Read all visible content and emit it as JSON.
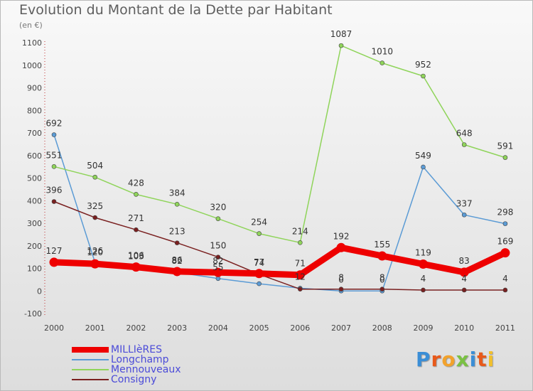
{
  "title": "Evolution du Montant de la Dette par Habitant",
  "unit_label": "(en €)",
  "brand": {
    "letters": [
      "P",
      "r",
      "o",
      "x",
      "i",
      "t",
      "i"
    ],
    "colors": [
      "#3b8ed6",
      "#e8591a",
      "#f2a22c",
      "#7ac143",
      "#3b8ed6",
      "#e8591a",
      "#f2c02c"
    ]
  },
  "chart_data": {
    "type": "line",
    "x": [
      "2000",
      "2001",
      "2002",
      "2003",
      "2004",
      "2005",
      "2006",
      "2007",
      "2008",
      "2009",
      "2010",
      "2011"
    ],
    "ylim": [
      -100,
      1100
    ],
    "yticks": [
      -100,
      0,
      100,
      200,
      300,
      400,
      500,
      600,
      700,
      800,
      900,
      1000,
      1100
    ],
    "grid": false,
    "legend_position": "bottom-left",
    "series": [
      {
        "name": "MILLIèRES",
        "color": "#ee0000",
        "emphasis": "thick",
        "values": [
          127,
          120,
          106,
          86,
          82,
          77,
          71,
          192,
          155,
          119,
          83,
          169
        ],
        "labels": [
          "127",
          "120",
          "106",
          "86",
          "82",
          "77",
          "71",
          "192",
          "155",
          "119",
          "83",
          "169"
        ]
      },
      {
        "name": "Longchamp",
        "color": "#5b9bd5",
        "emphasis": "normal",
        "values": [
          692,
          126,
          103,
          82,
          55,
          32,
          12,
          0,
          0,
          549,
          337,
          298
        ],
        "labels": [
          "692",
          "126",
          "103",
          "82",
          "55",
          "",
          "12",
          "0",
          "0",
          "549",
          "337",
          "298"
        ]
      },
      {
        "name": "Mennouveaux",
        "color": "#8fd45a",
        "emphasis": "normal",
        "values": [
          551,
          504,
          428,
          384,
          320,
          254,
          214,
          1087,
          1010,
          952,
          648,
          591
        ],
        "labels": [
          "551",
          "504",
          "428",
          "384",
          "320",
          "254",
          "214",
          "1087",
          "1010",
          "952",
          "648",
          "591"
        ]
      },
      {
        "name": "Consigny",
        "color": "#7a2020",
        "emphasis": "normal",
        "values": [
          396,
          325,
          271,
          213,
          150,
          74,
          8,
          8,
          8,
          4,
          4,
          4
        ],
        "labels": [
          "396",
          "325",
          "271",
          "213",
          "150",
          "74",
          "",
          "8",
          "8",
          "4",
          "4",
          "4"
        ]
      }
    ]
  }
}
